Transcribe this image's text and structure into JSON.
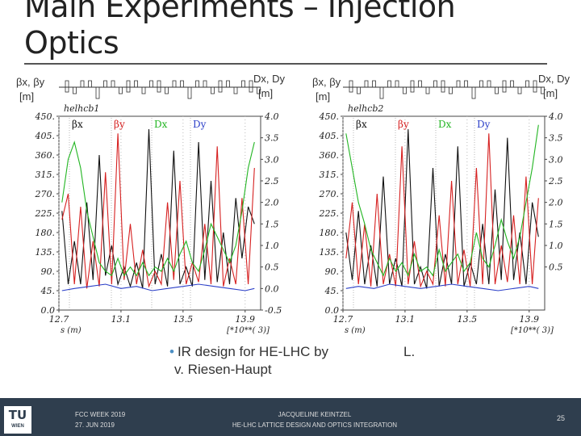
{
  "slide": {
    "title_line1": "Main Experiments – Injection",
    "title_line2": "Optics",
    "bullet": "IR design for HE-LHC by",
    "bullet_cont": "v. Riesen-Haupt",
    "bullet_tail": "L."
  },
  "footer": {
    "logo_top": "TU",
    "logo_bottom": "WIEN",
    "event": "FCC WEEK 2019",
    "date": "27. JUN 2019",
    "author": "JACQUELINE KEINTZEL",
    "talk": "HE-LHC LATTICE DESIGN AND OPTICS INTEGRATION",
    "page": "25"
  },
  "colors": {
    "beta_x": "#111111",
    "beta_y": "#d62020",
    "d_x": "#22b522",
    "d_y": "#2b3fc8"
  },
  "chart_data": [
    {
      "type": "line",
      "title": "helhcb1",
      "ylabel_left": "βx, βy\n[m]",
      "ylabel_right": "Dx, Dy\n[m]",
      "xlabel": "s (m)",
      "x_unit_label": "[*10**( 3)]",
      "xlim": [
        12.7,
        14.0
      ],
      "ylim_left": [
        0,
        450
      ],
      "ylim_right": [
        -0.5,
        4.0
      ],
      "x_ticks": [
        "12.7",
        "13.1",
        "13.5",
        "13.9"
      ],
      "y_ticks_left": [
        "0.0",
        "45.",
        "90.",
        "135.",
        "180.",
        "225.",
        "270.",
        "315.",
        "360.",
        "405.",
        "450."
      ],
      "y_ticks_right": [
        "-0.5",
        "0.0",
        "0.5",
        "1.0",
        "1.5",
        "2.0",
        "2.5",
        "3.0",
        "3.5",
        "4.0"
      ],
      "legend": [
        "βx",
        "βy",
        "Dx",
        "Dy"
      ],
      "series": [
        {
          "name": "βx",
          "axis": "left",
          "x": [
            12.72,
            12.76,
            12.8,
            12.84,
            12.88,
            12.92,
            12.96,
            13.0,
            13.04,
            13.08,
            13.12,
            13.16,
            13.2,
            13.24,
            13.28,
            13.32,
            13.36,
            13.4,
            13.44,
            13.48,
            13.52,
            13.56,
            13.6,
            13.64,
            13.68,
            13.72,
            13.76,
            13.8,
            13.84,
            13.88,
            13.92,
            13.96
          ],
          "y": [
            230,
            60,
            160,
            60,
            250,
            70,
            360,
            80,
            150,
            60,
            100,
            55,
            110,
            50,
            420,
            60,
            130,
            55,
            370,
            60,
            100,
            55,
            390,
            70,
            300,
            65,
            180,
            60,
            260,
            120,
            240,
            200
          ]
        },
        {
          "name": "βy",
          "axis": "left",
          "x": [
            12.72,
            12.76,
            12.8,
            12.84,
            12.88,
            12.92,
            12.96,
            13.0,
            13.04,
            13.08,
            13.12,
            13.16,
            13.2,
            13.24,
            13.28,
            13.32,
            13.36,
            13.4,
            13.44,
            13.48,
            13.52,
            13.56,
            13.6,
            13.64,
            13.68,
            13.72,
            13.76,
            13.8,
            13.84,
            13.88,
            13.92,
            13.96
          ],
          "y": [
            210,
            270,
            60,
            240,
            50,
            160,
            55,
            320,
            60,
            410,
            70,
            200,
            60,
            140,
            55,
            90,
            60,
            250,
            70,
            300,
            60,
            110,
            65,
            200,
            60,
            380,
            55,
            120,
            60,
            260,
            60,
            330
          ]
        },
        {
          "name": "Dx",
          "axis": "right",
          "x": [
            12.72,
            12.76,
            12.8,
            12.84,
            12.88,
            12.92,
            12.96,
            13.0,
            13.04,
            13.08,
            13.12,
            13.16,
            13.2,
            13.24,
            13.28,
            13.32,
            13.36,
            13.4,
            13.44,
            13.48,
            13.52,
            13.56,
            13.6,
            13.64,
            13.68,
            13.72,
            13.76,
            13.8,
            13.84,
            13.88,
            13.92,
            13.96
          ],
          "y": [
            2.0,
            3.0,
            3.4,
            2.8,
            1.8,
            1.2,
            0.6,
            0.4,
            0.3,
            0.7,
            0.3,
            0.5,
            0.3,
            0.6,
            0.3,
            0.5,
            0.4,
            0.7,
            0.4,
            0.8,
            1.1,
            0.6,
            0.4,
            0.9,
            1.5,
            1.2,
            0.9,
            0.6,
            1.0,
            1.8,
            2.8,
            3.4
          ]
        },
        {
          "name": "Dy",
          "axis": "right",
          "x": [
            12.72,
            12.8,
            12.9,
            13.0,
            13.1,
            13.2,
            13.3,
            13.4,
            13.5,
            13.6,
            13.7,
            13.8,
            13.9,
            13.96
          ],
          "y": [
            -0.05,
            0.0,
            0.05,
            0.1,
            0.0,
            0.05,
            -0.05,
            0.0,
            0.05,
            0.1,
            0.05,
            0.0,
            -0.05,
            0.0
          ]
        }
      ]
    },
    {
      "type": "line",
      "title": "helhcb2",
      "ylabel_left": "βx, βy\n[m]",
      "ylabel_right": "Dx, Dy\n[m]",
      "xlabel": "s (m)",
      "x_unit_label": "[*10**( 3)]",
      "xlim": [
        12.7,
        14.0
      ],
      "ylim_left": [
        0,
        450
      ],
      "ylim_right": [
        -0.5,
        4.0
      ],
      "x_ticks": [
        "12.7",
        "13.1",
        "13.5",
        "13.9"
      ],
      "y_ticks_left": [
        "0.0",
        "45.",
        "90.",
        "135.",
        "180.",
        "225.",
        "270.",
        "315.",
        "360.",
        "405.",
        "450."
      ],
      "y_ticks_right": [
        "0.5",
        "1.0",
        "1.5",
        "2.0",
        "2.5",
        "3.0",
        "3.5",
        "4.0"
      ],
      "legend": [
        "βx",
        "βy",
        "Dx",
        "Dy"
      ],
      "series": [
        {
          "name": "βx",
          "axis": "left",
          "x": [
            12.72,
            12.76,
            12.8,
            12.84,
            12.88,
            12.92,
            12.96,
            13.0,
            13.04,
            13.08,
            13.12,
            13.16,
            13.2,
            13.24,
            13.28,
            13.32,
            13.36,
            13.4,
            13.44,
            13.48,
            13.52,
            13.56,
            13.6,
            13.64,
            13.68,
            13.72,
            13.76,
            13.8,
            13.84,
            13.88,
            13.92,
            13.96
          ],
          "y": [
            180,
            70,
            230,
            60,
            150,
            55,
            310,
            60,
            120,
            55,
            420,
            60,
            100,
            50,
            330,
            55,
            130,
            60,
            380,
            55,
            110,
            60,
            200,
            60,
            280,
            70,
            400,
            70,
            180,
            60,
            250,
            170
          ]
        },
        {
          "name": "βy",
          "axis": "left",
          "x": [
            12.72,
            12.76,
            12.8,
            12.84,
            12.88,
            12.92,
            12.96,
            13.0,
            13.04,
            13.08,
            13.12,
            13.16,
            13.2,
            13.24,
            13.28,
            13.32,
            13.36,
            13.4,
            13.44,
            13.48,
            13.52,
            13.56,
            13.6,
            13.64,
            13.68,
            13.72,
            13.76,
            13.8,
            13.84,
            13.88,
            13.92,
            13.96
          ],
          "y": [
            120,
            250,
            60,
            200,
            55,
            270,
            60,
            130,
            55,
            380,
            60,
            160,
            55,
            90,
            60,
            220,
            55,
            300,
            60,
            140,
            55,
            330,
            60,
            410,
            60,
            150,
            65,
            220,
            60,
            310,
            60,
            260
          ]
        },
        {
          "name": "Dx",
          "axis": "right",
          "x": [
            12.72,
            12.76,
            12.8,
            12.84,
            12.88,
            12.92,
            12.96,
            13.0,
            13.04,
            13.08,
            13.12,
            13.16,
            13.2,
            13.24,
            13.28,
            13.32,
            13.36,
            13.4,
            13.44,
            13.48,
            13.52,
            13.56,
            13.6,
            13.64,
            13.68,
            13.72,
            13.76,
            13.8,
            13.84,
            13.88,
            13.92,
            13.96
          ],
          "y": [
            3.6,
            2.8,
            2.0,
            1.5,
            0.9,
            0.6,
            0.3,
            0.7,
            0.4,
            0.6,
            0.3,
            0.8,
            0.4,
            0.5,
            0.3,
            0.9,
            0.4,
            0.6,
            0.8,
            0.4,
            0.6,
            1.3,
            0.7,
            0.5,
            1.0,
            1.6,
            1.1,
            0.7,
            1.2,
            2.0,
            2.8,
            3.8
          ]
        },
        {
          "name": "Dy",
          "axis": "right",
          "x": [
            12.72,
            12.8,
            12.9,
            13.0,
            13.1,
            13.2,
            13.3,
            13.4,
            13.5,
            13.6,
            13.7,
            13.8,
            13.9,
            13.96
          ],
          "y": [
            0.0,
            0.05,
            0.0,
            0.1,
            0.05,
            0.0,
            0.05,
            0.1,
            0.05,
            0.0,
            -0.05,
            0.0,
            0.05,
            0.0
          ]
        }
      ]
    }
  ]
}
